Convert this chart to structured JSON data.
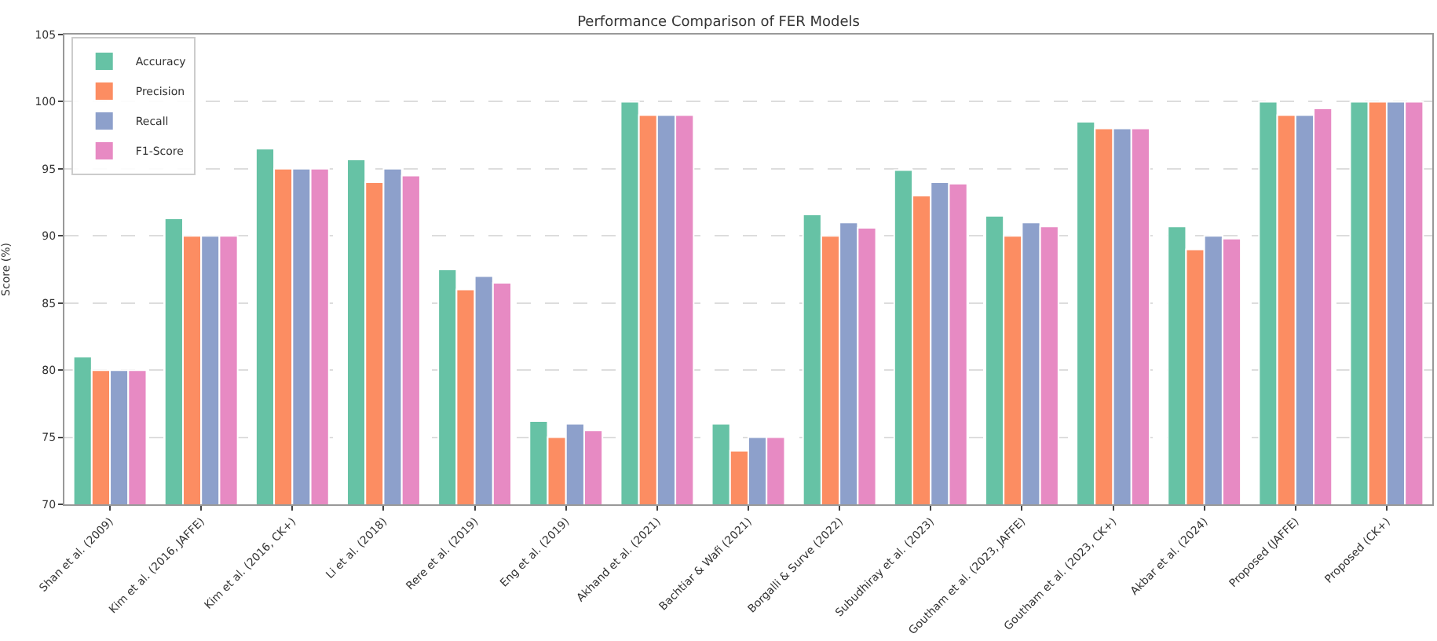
{
  "chart_data": {
    "type": "bar",
    "title": "Performance Comparison of FER Models",
    "ylabel": "Score (%)",
    "categories": [
      "Shan et al. (2009)",
      "Kim et al. (2016, JAFFE)",
      "Kim et al. (2016, CK+)",
      "Li et al. (2018)",
      "Rere et al. (2019)",
      "Eng et al. (2019)",
      "Akhand et al. (2021)",
      "Bachtiar & Wafi (2021)",
      "Borgalli & Surve (2022)",
      "Subudhiray et al. (2023)",
      "Goutham et al. (2023, JAFFE)",
      "Goutham et al. (2023, CK+)",
      "Akbar et al. (2024)",
      "Proposed (JAFFE)",
      "Proposed (CK+)"
    ],
    "series": [
      {
        "name": "Accuracy",
        "color": "#66c2a5",
        "values": [
          81,
          91.3,
          96.5,
          95.7,
          87.5,
          76.2,
          100,
          76,
          91.6,
          94.9,
          91.5,
          98.5,
          90.7,
          100,
          100
        ]
      },
      {
        "name": "Precision",
        "color": "#fc8d62",
        "values": [
          80,
          90,
          95,
          94,
          86,
          75,
          99,
          74,
          90,
          93,
          90,
          98,
          89,
          99,
          100
        ]
      },
      {
        "name": "Recall",
        "color": "#8da0cb",
        "values": [
          80,
          90,
          95,
          95,
          87,
          76,
          99,
          75,
          91,
          94,
          91,
          98,
          90,
          99,
          100
        ]
      },
      {
        "name": "F1-Score",
        "color": "#e78ac3",
        "values": [
          80,
          90,
          95,
          94.5,
          86.5,
          75.5,
          99,
          75,
          90.6,
          93.9,
          90.7,
          98,
          89.8,
          99.5,
          100
        ]
      }
    ],
    "ylim": [
      70,
      105
    ],
    "yticks": [
      70,
      75,
      80,
      85,
      90,
      95,
      100,
      105
    ],
    "grid": "y",
    "legend": "top left"
  }
}
